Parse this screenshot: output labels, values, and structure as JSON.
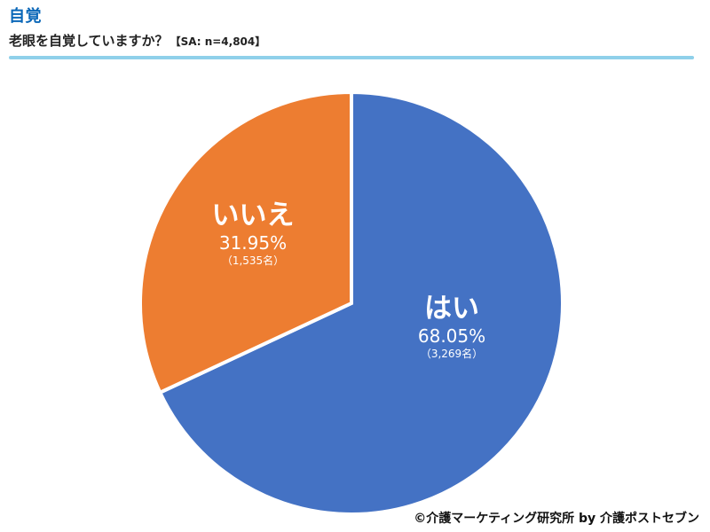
{
  "header": {
    "section_title": "自覚",
    "question": "老眼を自覚していますか？",
    "sample_note": "【SA: n=4,804】"
  },
  "chart_data": {
    "type": "pie",
    "categories": [
      "はい",
      "いいえ"
    ],
    "values": [
      68.05,
      31.95
    ],
    "counts": [
      "（3,269名）",
      "（1,535名）"
    ],
    "percent_labels": [
      "68.05%",
      "31.95%"
    ],
    "colors": [
      "#4472c4",
      "#ed7d31"
    ],
    "start_angle": "12 o'clock",
    "direction": "clockwise"
  },
  "credit": "©介護マーケティング研究所 by 介護ポストセブン"
}
